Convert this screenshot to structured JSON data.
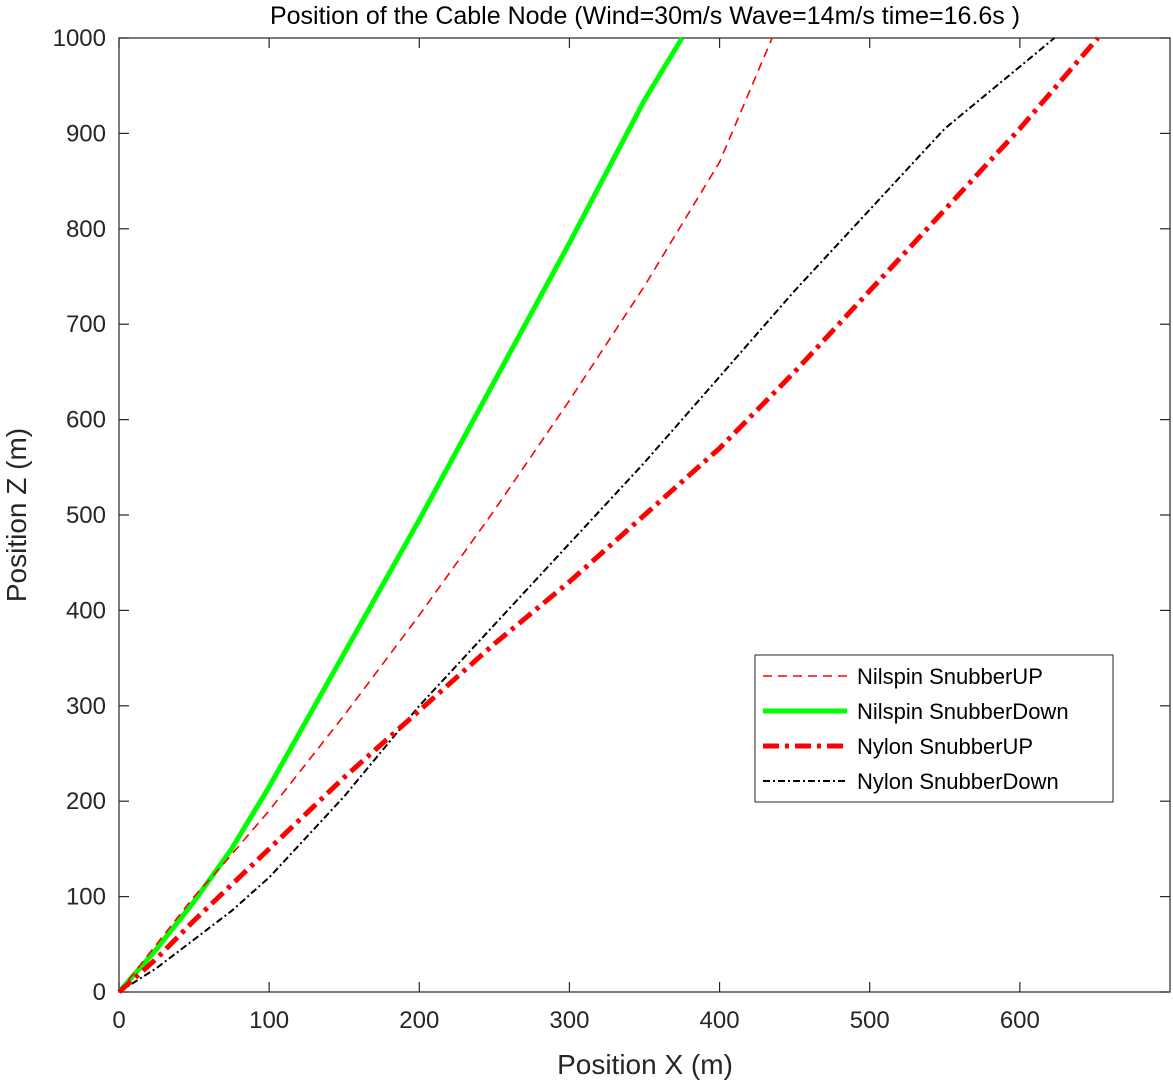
{
  "chart_data": {
    "type": "line",
    "title": "Position of the Cable Node (Wind=30m/s Wave=14m/s time=16.6s )",
    "xlabel": "Position X (m)",
    "ylabel": "Position Z (m)",
    "xlim": [
      0,
      700
    ],
    "ylim": [
      0,
      1000
    ],
    "xticks": [
      0,
      100,
      200,
      300,
      400,
      500,
      600
    ],
    "yticks": [
      0,
      100,
      200,
      300,
      400,
      500,
      600,
      700,
      800,
      900,
      1000
    ],
    "grid": false,
    "legend_position": "right",
    "series": [
      {
        "name": "Nilspin SnubberUP",
        "color": "#ff0000",
        "line_style": "dashed",
        "x": [
          0,
          20,
          50,
          70,
          100,
          150,
          200,
          250,
          300,
          350,
          400,
          435
        ],
        "y": [
          0,
          40,
          100,
          135,
          190,
          290,
          395,
          505,
          620,
          740,
          870,
          1000
        ]
      },
      {
        "name": "Nilspin SnubberDown",
        "color": "#00ff00",
        "line_style": "solid",
        "x": [
          0,
          25,
          50,
          75,
          100,
          150,
          200,
          250,
          300,
          350,
          375
        ],
        "y": [
          0,
          45,
          95,
          150,
          215,
          355,
          495,
          640,
          785,
          935,
          1000
        ]
      },
      {
        "name": "Nylon SnubberUP",
        "color": "#ff0000",
        "line_style": "dashdot",
        "x": [
          0,
          25,
          50,
          100,
          150,
          200,
          250,
          300,
          350,
          400,
          450,
          500,
          550,
          600,
          630,
          652
        ],
        "y": [
          0,
          35,
          75,
          150,
          225,
          295,
          365,
          430,
          500,
          570,
          650,
          735,
          820,
          905,
          960,
          1000
        ]
      },
      {
        "name": "Nylon SnubberDown",
        "color": "#000000",
        "line_style": "dashdot",
        "x": [
          0,
          25,
          50,
          75,
          100,
          150,
          200,
          250,
          300,
          350,
          400,
          450,
          500,
          550,
          600,
          623
        ],
        "y": [
          0,
          25,
          55,
          85,
          120,
          205,
          300,
          385,
          470,
          555,
          645,
          735,
          820,
          905,
          970,
          1000
        ]
      }
    ]
  }
}
